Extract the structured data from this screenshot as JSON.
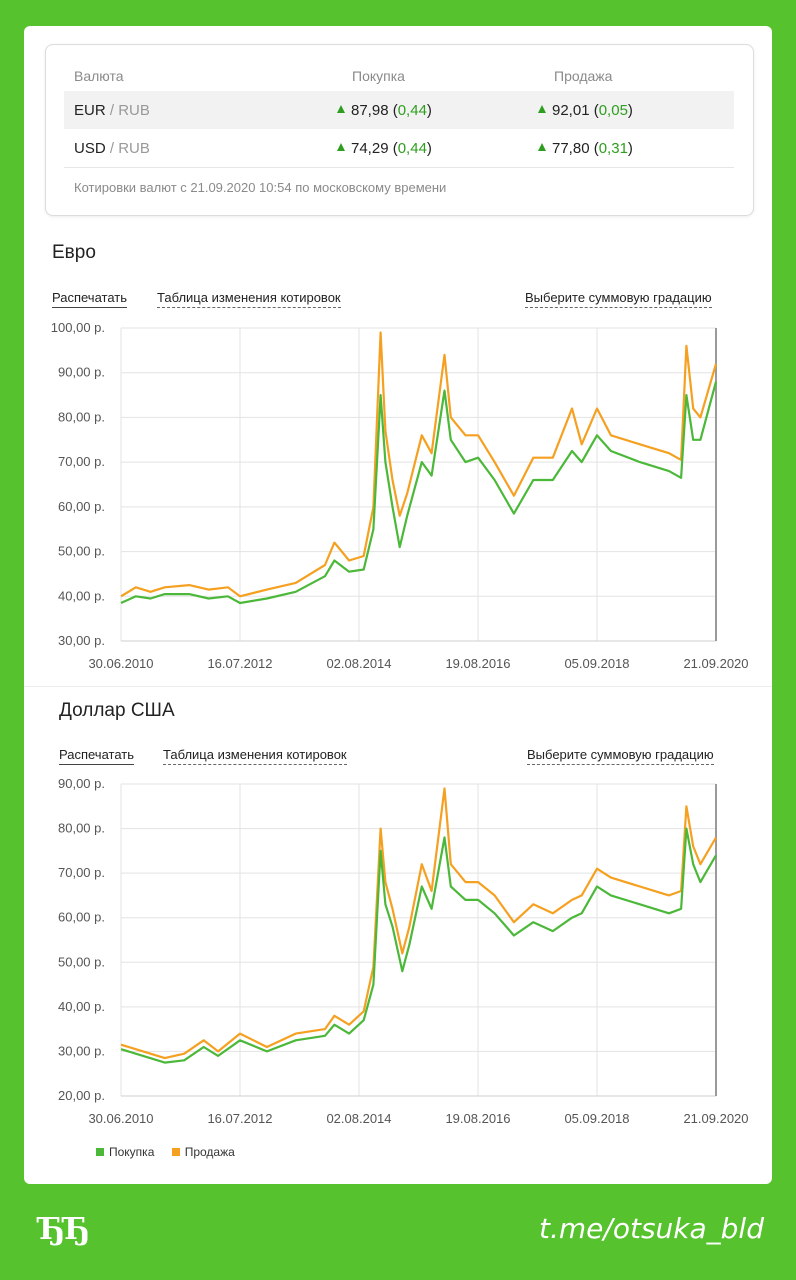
{
  "rates": {
    "headers": {
      "currency": "Валюта",
      "buy": "Покупка",
      "sell": "Продажа"
    },
    "rows": [
      {
        "base": "EUR",
        "sep": " / ",
        "quote": "RUB",
        "buy": "87,98",
        "buy_change": "0,44",
        "sell": "92,01",
        "sell_change": "0,05"
      },
      {
        "base": "USD",
        "sep": " / ",
        "quote": "RUB",
        "buy": "74,29",
        "buy_change": "0,44",
        "sell": "77,80",
        "sell_change": "0,31"
      }
    ],
    "note": "Котировки валют с 21.09.2020 10:54 по московскому времени"
  },
  "links": {
    "print": "Распечатать",
    "table": "Таблица изменения котировок",
    "gradation": "Выберите суммовую градацию"
  },
  "colors": {
    "buy": "#4cb83a",
    "sell": "#f5a020",
    "accent_green": "#2e9e1e",
    "frame": "#55c22e"
  },
  "legend": {
    "buy": "Покупка",
    "sell": "Продажа"
  },
  "branding": {
    "left": "ЂЂ",
    "right": "t.me/otsuka_bld"
  },
  "chart_data": [
    {
      "type": "line",
      "title": "Евро",
      "x_ticks": [
        "30.06.2010",
        "16.07.2012",
        "02.08.2014",
        "19.08.2016",
        "05.09.2018",
        "21.09.2020"
      ],
      "y_ticks": [
        "30,00 р.",
        "40,00 р.",
        "50,00 р.",
        "60,00 р.",
        "70,00 р.",
        "80,00 р.",
        "90,00 р.",
        "100,00 р."
      ],
      "ylim": [
        30,
        100
      ],
      "xlim": [
        "2010-06-30",
        "2020-09-21"
      ],
      "grid": true,
      "series": [
        {
          "name": "Покупка",
          "color": "#4cb83a",
          "points": [
            [
              "2010-06-30",
              38.5
            ],
            [
              "2010-10-01",
              40
            ],
            [
              "2011-01-01",
              39.5
            ],
            [
              "2011-04-01",
              40.5
            ],
            [
              "2011-09-01",
              40.5
            ],
            [
              "2012-01-01",
              39.5
            ],
            [
              "2012-05-01",
              40
            ],
            [
              "2012-07-16",
              38.5
            ],
            [
              "2013-01-01",
              39.5
            ],
            [
              "2013-07-01",
              41
            ],
            [
              "2014-01-01",
              44.5
            ],
            [
              "2014-03-01",
              48
            ],
            [
              "2014-06-01",
              45.5
            ],
            [
              "2014-09-01",
              46
            ],
            [
              "2014-11-01",
              55
            ],
            [
              "2014-12-16",
              85
            ],
            [
              "2015-01-15",
              70
            ],
            [
              "2015-03-01",
              60
            ],
            [
              "2015-04-15",
              51
            ],
            [
              "2015-06-01",
              58
            ],
            [
              "2015-09-01",
              70
            ],
            [
              "2015-11-01",
              67
            ],
            [
              "2016-01-21",
              86
            ],
            [
              "2016-03-01",
              75
            ],
            [
              "2016-06-01",
              70
            ],
            [
              "2016-08-19",
              71
            ],
            [
              "2016-12-01",
              66
            ],
            [
              "2017-04-01",
              58.5
            ],
            [
              "2017-08-01",
              66
            ],
            [
              "2017-12-01",
              66
            ],
            [
              "2018-04-01",
              72.5
            ],
            [
              "2018-06-01",
              70
            ],
            [
              "2018-09-05",
              76
            ],
            [
              "2018-12-01",
              72.5
            ],
            [
              "2019-06-01",
              70
            ],
            [
              "2019-12-01",
              68
            ],
            [
              "2020-02-15",
              66.5
            ],
            [
              "2020-03-19",
              85
            ],
            [
              "2020-05-01",
              75
            ],
            [
              "2020-06-15",
              75
            ],
            [
              "2020-09-21",
              88
            ]
          ]
        },
        {
          "name": "Продажа",
          "color": "#f5a020",
          "points": [
            [
              "2010-06-30",
              40
            ],
            [
              "2010-10-01",
              42
            ],
            [
              "2011-01-01",
              41
            ],
            [
              "2011-04-01",
              42
            ],
            [
              "2011-09-01",
              42.5
            ],
            [
              "2012-01-01",
              41.5
            ],
            [
              "2012-05-01",
              42
            ],
            [
              "2012-07-16",
              40
            ],
            [
              "2013-01-01",
              41.5
            ],
            [
              "2013-07-01",
              43
            ],
            [
              "2014-01-01",
              47
            ],
            [
              "2014-03-01",
              52
            ],
            [
              "2014-06-01",
              48
            ],
            [
              "2014-09-01",
              49
            ],
            [
              "2014-11-01",
              60
            ],
            [
              "2014-12-16",
              99
            ],
            [
              "2015-01-15",
              77
            ],
            [
              "2015-03-01",
              66
            ],
            [
              "2015-04-15",
              58
            ],
            [
              "2015-06-01",
              63
            ],
            [
              "2015-09-01",
              76
            ],
            [
              "2015-11-01",
              72
            ],
            [
              "2016-01-21",
              94
            ],
            [
              "2016-03-01",
              80
            ],
            [
              "2016-06-01",
              76
            ],
            [
              "2016-08-19",
              76
            ],
            [
              "2016-12-01",
              70
            ],
            [
              "2017-04-01",
              62.5
            ],
            [
              "2017-08-01",
              71
            ],
            [
              "2017-12-01",
              71
            ],
            [
              "2018-04-01",
              82
            ],
            [
              "2018-06-01",
              74
            ],
            [
              "2018-09-05",
              82
            ],
            [
              "2018-12-01",
              76
            ],
            [
              "2019-06-01",
              74
            ],
            [
              "2019-12-01",
              72
            ],
            [
              "2020-02-15",
              70.5
            ],
            [
              "2020-03-19",
              96
            ],
            [
              "2020-05-01",
              82
            ],
            [
              "2020-06-15",
              80
            ],
            [
              "2020-09-21",
              92
            ]
          ]
        }
      ]
    },
    {
      "type": "line",
      "title": "Доллар США",
      "x_ticks": [
        "30.06.2010",
        "16.07.2012",
        "02.08.2014",
        "19.08.2016",
        "05.09.2018",
        "21.09.2020"
      ],
      "y_ticks": [
        "20,00 р.",
        "30,00 р.",
        "40,00 р.",
        "50,00 р.",
        "60,00 р.",
        "70,00 р.",
        "80,00 р.",
        "90,00 р."
      ],
      "ylim": [
        20,
        90
      ],
      "xlim": [
        "2010-06-30",
        "2020-09-21"
      ],
      "grid": true,
      "legend_position": "bottom-left",
      "series": [
        {
          "name": "Покупка",
          "color": "#4cb83a",
          "points": [
            [
              "2010-06-30",
              30.5
            ],
            [
              "2010-10-01",
              29.5
            ],
            [
              "2011-04-01",
              27.5
            ],
            [
              "2011-08-01",
              28
            ],
            [
              "2011-12-01",
              31
            ],
            [
              "2012-03-01",
              29
            ],
            [
              "2012-07-16",
              32.5
            ],
            [
              "2013-01-01",
              30
            ],
            [
              "2013-07-01",
              32.5
            ],
            [
              "2014-01-01",
              33.5
            ],
            [
              "2014-03-01",
              36
            ],
            [
              "2014-06-01",
              34
            ],
            [
              "2014-09-01",
              37
            ],
            [
              "2014-11-01",
              45
            ],
            [
              "2014-12-16",
              75
            ],
            [
              "2015-01-15",
              63
            ],
            [
              "2015-03-01",
              58
            ],
            [
              "2015-05-01",
              48
            ],
            [
              "2015-06-15",
              54
            ],
            [
              "2015-09-01",
              67
            ],
            [
              "2015-11-01",
              62
            ],
            [
              "2016-01-21",
              78
            ],
            [
              "2016-03-01",
              67
            ],
            [
              "2016-06-01",
              64
            ],
            [
              "2016-08-19",
              64
            ],
            [
              "2016-12-01",
              61
            ],
            [
              "2017-04-01",
              56
            ],
            [
              "2017-08-01",
              59
            ],
            [
              "2017-12-01",
              57
            ],
            [
              "2018-04-01",
              60
            ],
            [
              "2018-06-01",
              61
            ],
            [
              "2018-09-05",
              67
            ],
            [
              "2018-12-01",
              65
            ],
            [
              "2019-06-01",
              63
            ],
            [
              "2019-12-01",
              61
            ],
            [
              "2020-02-15",
              62
            ],
            [
              "2020-03-19",
              80
            ],
            [
              "2020-05-01",
              72
            ],
            [
              "2020-06-15",
              68
            ],
            [
              "2020-09-21",
              74
            ]
          ]
        },
        {
          "name": "Продажа",
          "color": "#f5a020",
          "points": [
            [
              "2010-06-30",
              31.5
            ],
            [
              "2010-10-01",
              30.5
            ],
            [
              "2011-04-01",
              28.5
            ],
            [
              "2011-08-01",
              29.5
            ],
            [
              "2011-12-01",
              32.5
            ],
            [
              "2012-03-01",
              30
            ],
            [
              "2012-07-16",
              34
            ],
            [
              "2013-01-01",
              31
            ],
            [
              "2013-07-01",
              34
            ],
            [
              "2014-01-01",
              35
            ],
            [
              "2014-03-01",
              38
            ],
            [
              "2014-06-01",
              36
            ],
            [
              "2014-09-01",
              39
            ],
            [
              "2014-11-01",
              49
            ],
            [
              "2014-12-16",
              80
            ],
            [
              "2015-01-15",
              68
            ],
            [
              "2015-03-01",
              62
            ],
            [
              "2015-05-01",
              52
            ],
            [
              "2015-06-15",
              58
            ],
            [
              "2015-09-01",
              72
            ],
            [
              "2015-11-01",
              66
            ],
            [
              "2016-01-21",
              89
            ],
            [
              "2016-03-01",
              72
            ],
            [
              "2016-06-01",
              68
            ],
            [
              "2016-08-19",
              68
            ],
            [
              "2016-12-01",
              65
            ],
            [
              "2017-04-01",
              59
            ],
            [
              "2017-08-01",
              63
            ],
            [
              "2017-12-01",
              61
            ],
            [
              "2018-04-01",
              64
            ],
            [
              "2018-06-01",
              65
            ],
            [
              "2018-09-05",
              71
            ],
            [
              "2018-12-01",
              69
            ],
            [
              "2019-06-01",
              67
            ],
            [
              "2019-12-01",
              65
            ],
            [
              "2020-02-15",
              66
            ],
            [
              "2020-03-19",
              85
            ],
            [
              "2020-05-01",
              76
            ],
            [
              "2020-06-15",
              72
            ],
            [
              "2020-09-21",
              78
            ]
          ]
        }
      ]
    }
  ]
}
